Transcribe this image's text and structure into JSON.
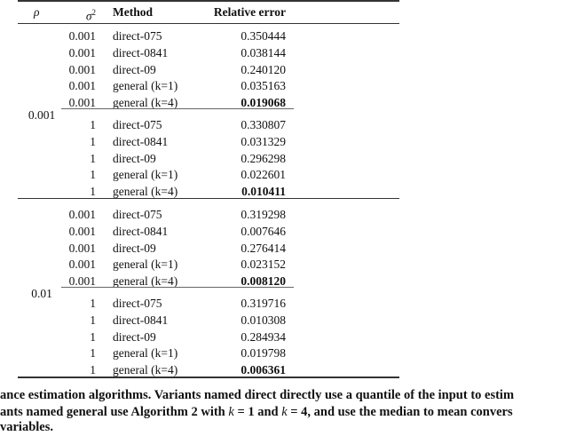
{
  "table": {
    "headers": {
      "rho": "ρ",
      "sigma": "σ",
      "sigma_sup": "2",
      "method": "Method",
      "error": "Relative error"
    },
    "groups": [
      {
        "rho": "0.001",
        "blocks": [
          {
            "rows": [
              {
                "sigma2": "0.001",
                "method": "direct-075",
                "error": "0.350444",
                "bold": false
              },
              {
                "sigma2": "0.001",
                "method": "direct-0841",
                "error": "0.038144",
                "bold": false
              },
              {
                "sigma2": "0.001",
                "method": "direct-09",
                "error": "0.240120",
                "bold": false
              },
              {
                "sigma2": "0.001",
                "method": "general (k=1)",
                "error": "0.035163",
                "bold": false
              },
              {
                "sigma2": "0.001",
                "method": "general (k=4)",
                "error": "0.019068",
                "bold": true
              }
            ]
          },
          {
            "rows": [
              {
                "sigma2": "1",
                "method": "direct-075",
                "error": "0.330807",
                "bold": false
              },
              {
                "sigma2": "1",
                "method": "direct-0841",
                "error": "0.031329",
                "bold": false
              },
              {
                "sigma2": "1",
                "method": "direct-09",
                "error": "0.296298",
                "bold": false
              },
              {
                "sigma2": "1",
                "method": "general (k=1)",
                "error": "0.022601",
                "bold": false
              },
              {
                "sigma2": "1",
                "method": "general (k=4)",
                "error": "0.010411",
                "bold": true
              }
            ]
          }
        ]
      },
      {
        "rho": "0.01",
        "blocks": [
          {
            "rows": [
              {
                "sigma2": "0.001",
                "method": "direct-075",
                "error": "0.319298",
                "bold": false
              },
              {
                "sigma2": "0.001",
                "method": "direct-0841",
                "error": "0.007646",
                "bold": false
              },
              {
                "sigma2": "0.001",
                "method": "direct-09",
                "error": "0.276414",
                "bold": false
              },
              {
                "sigma2": "0.001",
                "method": "general (k=1)",
                "error": "0.023152",
                "bold": false
              },
              {
                "sigma2": "0.001",
                "method": "general (k=4)",
                "error": "0.008120",
                "bold": true
              }
            ]
          },
          {
            "rows": [
              {
                "sigma2": "1",
                "method": "direct-075",
                "error": "0.319716",
                "bold": false
              },
              {
                "sigma2": "1",
                "method": "direct-0841",
                "error": "0.010308",
                "bold": false
              },
              {
                "sigma2": "1",
                "method": "direct-09",
                "error": "0.284934",
                "bold": false
              },
              {
                "sigma2": "1",
                "method": "general (k=1)",
                "error": "0.019798",
                "bold": false
              },
              {
                "sigma2": "1",
                "method": "general (k=4)",
                "error": "0.006361",
                "bold": true
              }
            ]
          }
        ]
      }
    ]
  },
  "caption": {
    "line1": "ance estimation algorithms. Variants named direct directly use a quantile of the input to estim",
    "line2_a": "ants named general use Algorithm 2 with ",
    "k": "k",
    "line2_b": " = 1 and ",
    "line2_c": " = 4, and use the median to mean convers",
    "line3": "variables."
  }
}
